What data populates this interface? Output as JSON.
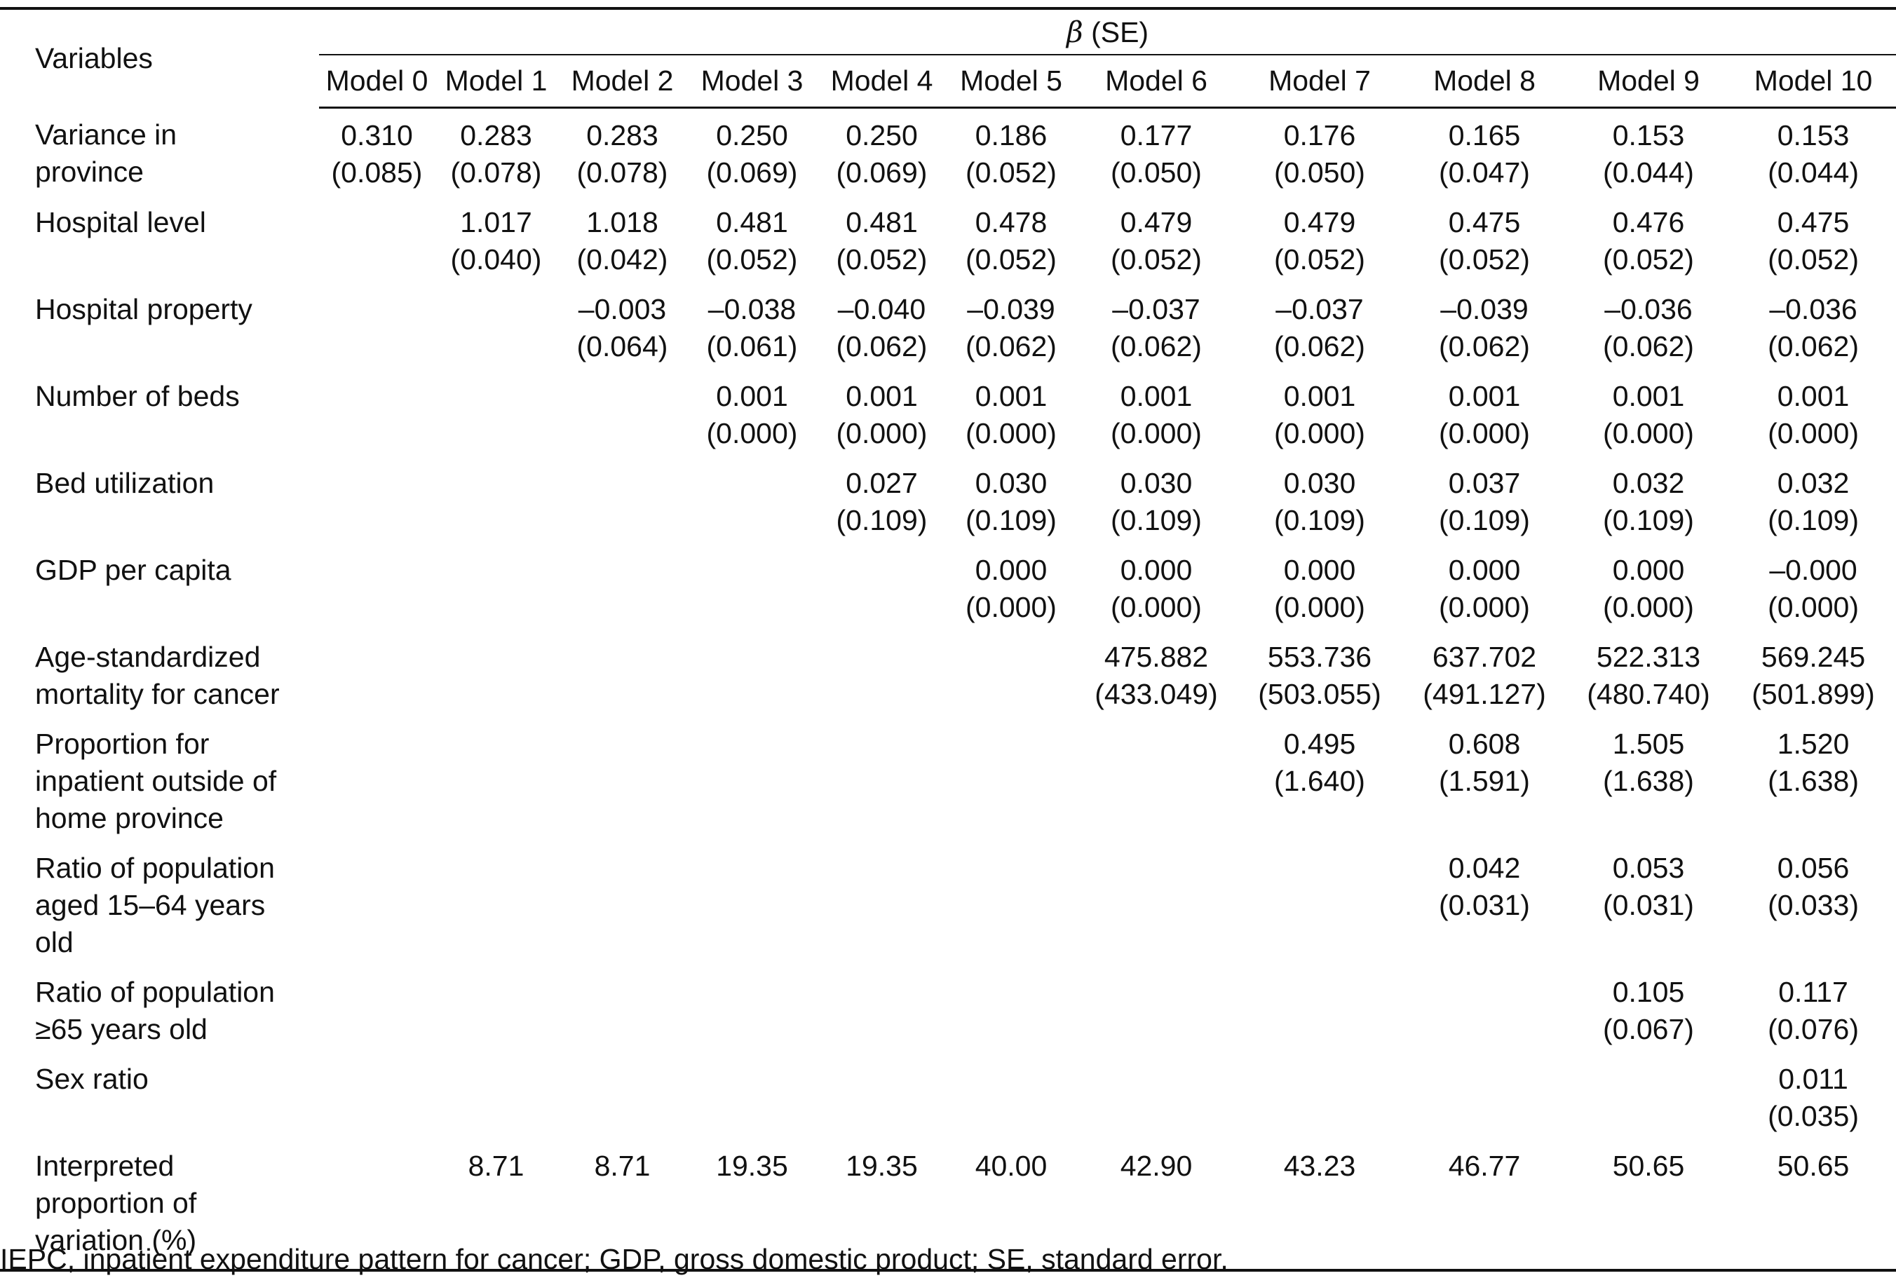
{
  "table": {
    "header": {
      "variables_label": "Variables",
      "beta_symbol": "β",
      "beta_suffix": " (SE)",
      "models": [
        "Model 0",
        "Model 1",
        "Model 2",
        "Model 3",
        "Model 4",
        "Model 5",
        "Model 6",
        "Model 7",
        "Model 8",
        "Model 9",
        "Model 10"
      ]
    },
    "rows": [
      {
        "label_lines": [
          "Variance in",
          "province"
        ],
        "cells": [
          [
            "0.310",
            "(0.085)"
          ],
          [
            "0.283",
            "(0.078)"
          ],
          [
            "0.283",
            "(0.078)"
          ],
          [
            "0.250",
            "(0.069)"
          ],
          [
            "0.250",
            "(0.069)"
          ],
          [
            "0.186",
            "(0.052)"
          ],
          [
            "0.177",
            "(0.050)"
          ],
          [
            "0.176",
            "(0.050)"
          ],
          [
            "0.165",
            "(0.047)"
          ],
          [
            "0.153",
            "(0.044)"
          ],
          [
            "0.153",
            "(0.044)"
          ]
        ]
      },
      {
        "label_lines": [
          "Hospital level"
        ],
        "cells": [
          [
            "",
            ""
          ],
          [
            "1.017",
            "(0.040)"
          ],
          [
            "1.018",
            "(0.042)"
          ],
          [
            "0.481",
            "(0.052)"
          ],
          [
            "0.481",
            "(0.052)"
          ],
          [
            "0.478",
            "(0.052)"
          ],
          [
            "0.479",
            "(0.052)"
          ],
          [
            "0.479",
            "(0.052)"
          ],
          [
            "0.475",
            "(0.052)"
          ],
          [
            "0.476",
            "(0.052)"
          ],
          [
            "0.475",
            "(0.052)"
          ]
        ]
      },
      {
        "label_lines": [
          "Hospital property"
        ],
        "cells": [
          [
            "",
            ""
          ],
          [
            "",
            ""
          ],
          [
            "–0.003",
            "(0.064)"
          ],
          [
            "–0.038",
            "(0.061)"
          ],
          [
            "–0.040",
            "(0.062)"
          ],
          [
            "–0.039",
            "(0.062)"
          ],
          [
            "–0.037",
            "(0.062)"
          ],
          [
            "–0.037",
            "(0.062)"
          ],
          [
            "–0.039",
            "(0.062)"
          ],
          [
            "–0.036",
            "(0.062)"
          ],
          [
            "–0.036",
            "(0.062)"
          ]
        ]
      },
      {
        "label_lines": [
          "Number of beds"
        ],
        "cells": [
          [
            "",
            ""
          ],
          [
            "",
            ""
          ],
          [
            "",
            ""
          ],
          [
            "0.001",
            "(0.000)"
          ],
          [
            "0.001",
            "(0.000)"
          ],
          [
            "0.001",
            "(0.000)"
          ],
          [
            "0.001",
            "(0.000)"
          ],
          [
            "0.001",
            "(0.000)"
          ],
          [
            "0.001",
            "(0.000)"
          ],
          [
            "0.001",
            "(0.000)"
          ],
          [
            "0.001",
            "(0.000)"
          ]
        ]
      },
      {
        "label_lines": [
          "Bed utilization"
        ],
        "cells": [
          [
            "",
            ""
          ],
          [
            "",
            ""
          ],
          [
            "",
            ""
          ],
          [
            "",
            ""
          ],
          [
            "0.027",
            "(0.109)"
          ],
          [
            "0.030",
            "(0.109)"
          ],
          [
            "0.030",
            "(0.109)"
          ],
          [
            "0.030",
            "(0.109)"
          ],
          [
            "0.037",
            "(0.109)"
          ],
          [
            "0.032",
            "(0.109)"
          ],
          [
            "0.032",
            "(0.109)"
          ]
        ]
      },
      {
        "label_lines": [
          "GDP per capita"
        ],
        "cells": [
          [
            "",
            ""
          ],
          [
            "",
            ""
          ],
          [
            "",
            ""
          ],
          [
            "",
            ""
          ],
          [
            "",
            ""
          ],
          [
            "0.000",
            "(0.000)"
          ],
          [
            "0.000",
            "(0.000)"
          ],
          [
            "0.000",
            "(0.000)"
          ],
          [
            "0.000",
            "(0.000)"
          ],
          [
            "0.000",
            "(0.000)"
          ],
          [
            "–0.000",
            "(0.000)"
          ]
        ]
      },
      {
        "label_lines": [
          "Age-standardized",
          "mortality for cancer"
        ],
        "cells": [
          [
            "",
            ""
          ],
          [
            "",
            ""
          ],
          [
            "",
            ""
          ],
          [
            "",
            ""
          ],
          [
            "",
            ""
          ],
          [
            "",
            ""
          ],
          [
            "475.882",
            "(433.049)"
          ],
          [
            "553.736",
            "(503.055)"
          ],
          [
            "637.702",
            "(491.127)"
          ],
          [
            "522.313",
            "(480.740)"
          ],
          [
            "569.245",
            "(501.899)"
          ]
        ]
      },
      {
        "label_lines": [
          "Proportion for",
          "inpatient outside of",
          "home province"
        ],
        "cells": [
          [
            "",
            ""
          ],
          [
            "",
            ""
          ],
          [
            "",
            ""
          ],
          [
            "",
            ""
          ],
          [
            "",
            ""
          ],
          [
            "",
            ""
          ],
          [
            "",
            ""
          ],
          [
            "0.495",
            "(1.640)"
          ],
          [
            "0.608",
            "(1.591)"
          ],
          [
            "1.505",
            "(1.638)"
          ],
          [
            "1.520",
            "(1.638)"
          ]
        ]
      },
      {
        "label_lines": [
          "Ratio of population",
          "aged 15–64 years",
          "old"
        ],
        "cells": [
          [
            "",
            ""
          ],
          [
            "",
            ""
          ],
          [
            "",
            ""
          ],
          [
            "",
            ""
          ],
          [
            "",
            ""
          ],
          [
            "",
            ""
          ],
          [
            "",
            ""
          ],
          [
            "",
            ""
          ],
          [
            "0.042",
            "(0.031)"
          ],
          [
            "0.053",
            "(0.031)"
          ],
          [
            "0.056",
            "(0.033)"
          ]
        ]
      },
      {
        "label_lines": [
          "Ratio of population",
          "≥65 years old"
        ],
        "cells": [
          [
            "",
            ""
          ],
          [
            "",
            ""
          ],
          [
            "",
            ""
          ],
          [
            "",
            ""
          ],
          [
            "",
            ""
          ],
          [
            "",
            ""
          ],
          [
            "",
            ""
          ],
          [
            "",
            ""
          ],
          [
            "",
            ""
          ],
          [
            "0.105",
            "(0.067)"
          ],
          [
            "0.117",
            "(0.076)"
          ]
        ]
      },
      {
        "label_lines": [
          "Sex ratio"
        ],
        "cells": [
          [
            "",
            ""
          ],
          [
            "",
            ""
          ],
          [
            "",
            ""
          ],
          [
            "",
            ""
          ],
          [
            "",
            ""
          ],
          [
            "",
            ""
          ],
          [
            "",
            ""
          ],
          [
            "",
            ""
          ],
          [
            "",
            ""
          ],
          [
            "",
            ""
          ],
          [
            "0.011",
            "(0.035)"
          ]
        ]
      },
      {
        "label_lines": [
          "Interpreted",
          "proportion of",
          "variation (%)"
        ],
        "cells": [
          [
            "",
            ""
          ],
          [
            "8.71",
            ""
          ],
          [
            "8.71",
            ""
          ],
          [
            "19.35",
            ""
          ],
          [
            "19.35",
            ""
          ],
          [
            "40.00",
            ""
          ],
          [
            "42.90",
            ""
          ],
          [
            "43.23",
            ""
          ],
          [
            "46.77",
            ""
          ],
          [
            "50.65",
            ""
          ],
          [
            "50.65",
            ""
          ]
        ]
      }
    ]
  },
  "footnote": "IEPC, inpatient expenditure pattern for cancer; GDP, gross domestic product; SE, standard error."
}
